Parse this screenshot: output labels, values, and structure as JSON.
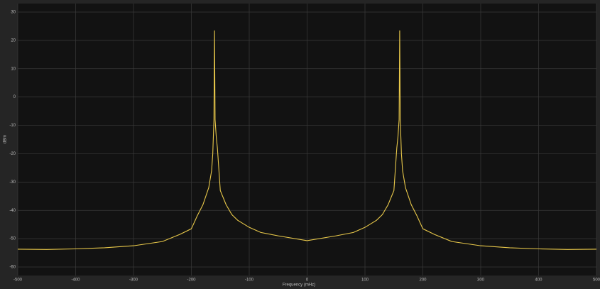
{
  "chart_data": {
    "type": "line",
    "xlabel": "Frequency (mHz)",
    "ylabel": "dBm",
    "xlim": [
      -500,
      500
    ],
    "ylim": [
      -63,
      33
    ],
    "xticks": [
      -500,
      -400,
      -300,
      -200,
      -100,
      0,
      100,
      200,
      300,
      400,
      500
    ],
    "yticks": [
      -60,
      -50,
      -40,
      -30,
      -20,
      -10,
      0,
      10,
      20,
      30
    ],
    "grid": true,
    "series": [
      {
        "color": "#e8c84a",
        "x": [
          -500,
          -450,
          -400,
          -350,
          -300,
          -250,
          -220,
          -200,
          -190,
          -180,
          -175,
          -170,
          -165,
          -163,
          -161,
          -160,
          -159,
          -157,
          -155,
          -150,
          -140,
          -130,
          -120,
          -100,
          -80,
          -50,
          0,
          50,
          80,
          100,
          120,
          130,
          140,
          150,
          155,
          157,
          159,
          160,
          161,
          163,
          165,
          170,
          175,
          180,
          190,
          200,
          220,
          250,
          300,
          350,
          400,
          450,
          500
        ],
        "values": [
          -53.7,
          -53.8,
          -53.6,
          -53.2,
          -52.5,
          -51,
          -48.5,
          -46.5,
          -42,
          -38,
          -35,
          -32,
          -26,
          -20,
          -8,
          23.5,
          -8,
          -14,
          -18,
          -33,
          -38,
          -41.5,
          -43.5,
          -46,
          -47.8,
          -49,
          -50.7,
          -49,
          -47.8,
          -46,
          -43.5,
          -41.5,
          -38,
          -33,
          -18,
          -14,
          -8,
          23.5,
          -8,
          -20,
          -26,
          -32,
          -35,
          -38,
          -42,
          -46.5,
          -48.5,
          -51,
          -52.5,
          -53.2,
          -53.6,
          -53.8,
          -53.7
        ]
      }
    ]
  }
}
